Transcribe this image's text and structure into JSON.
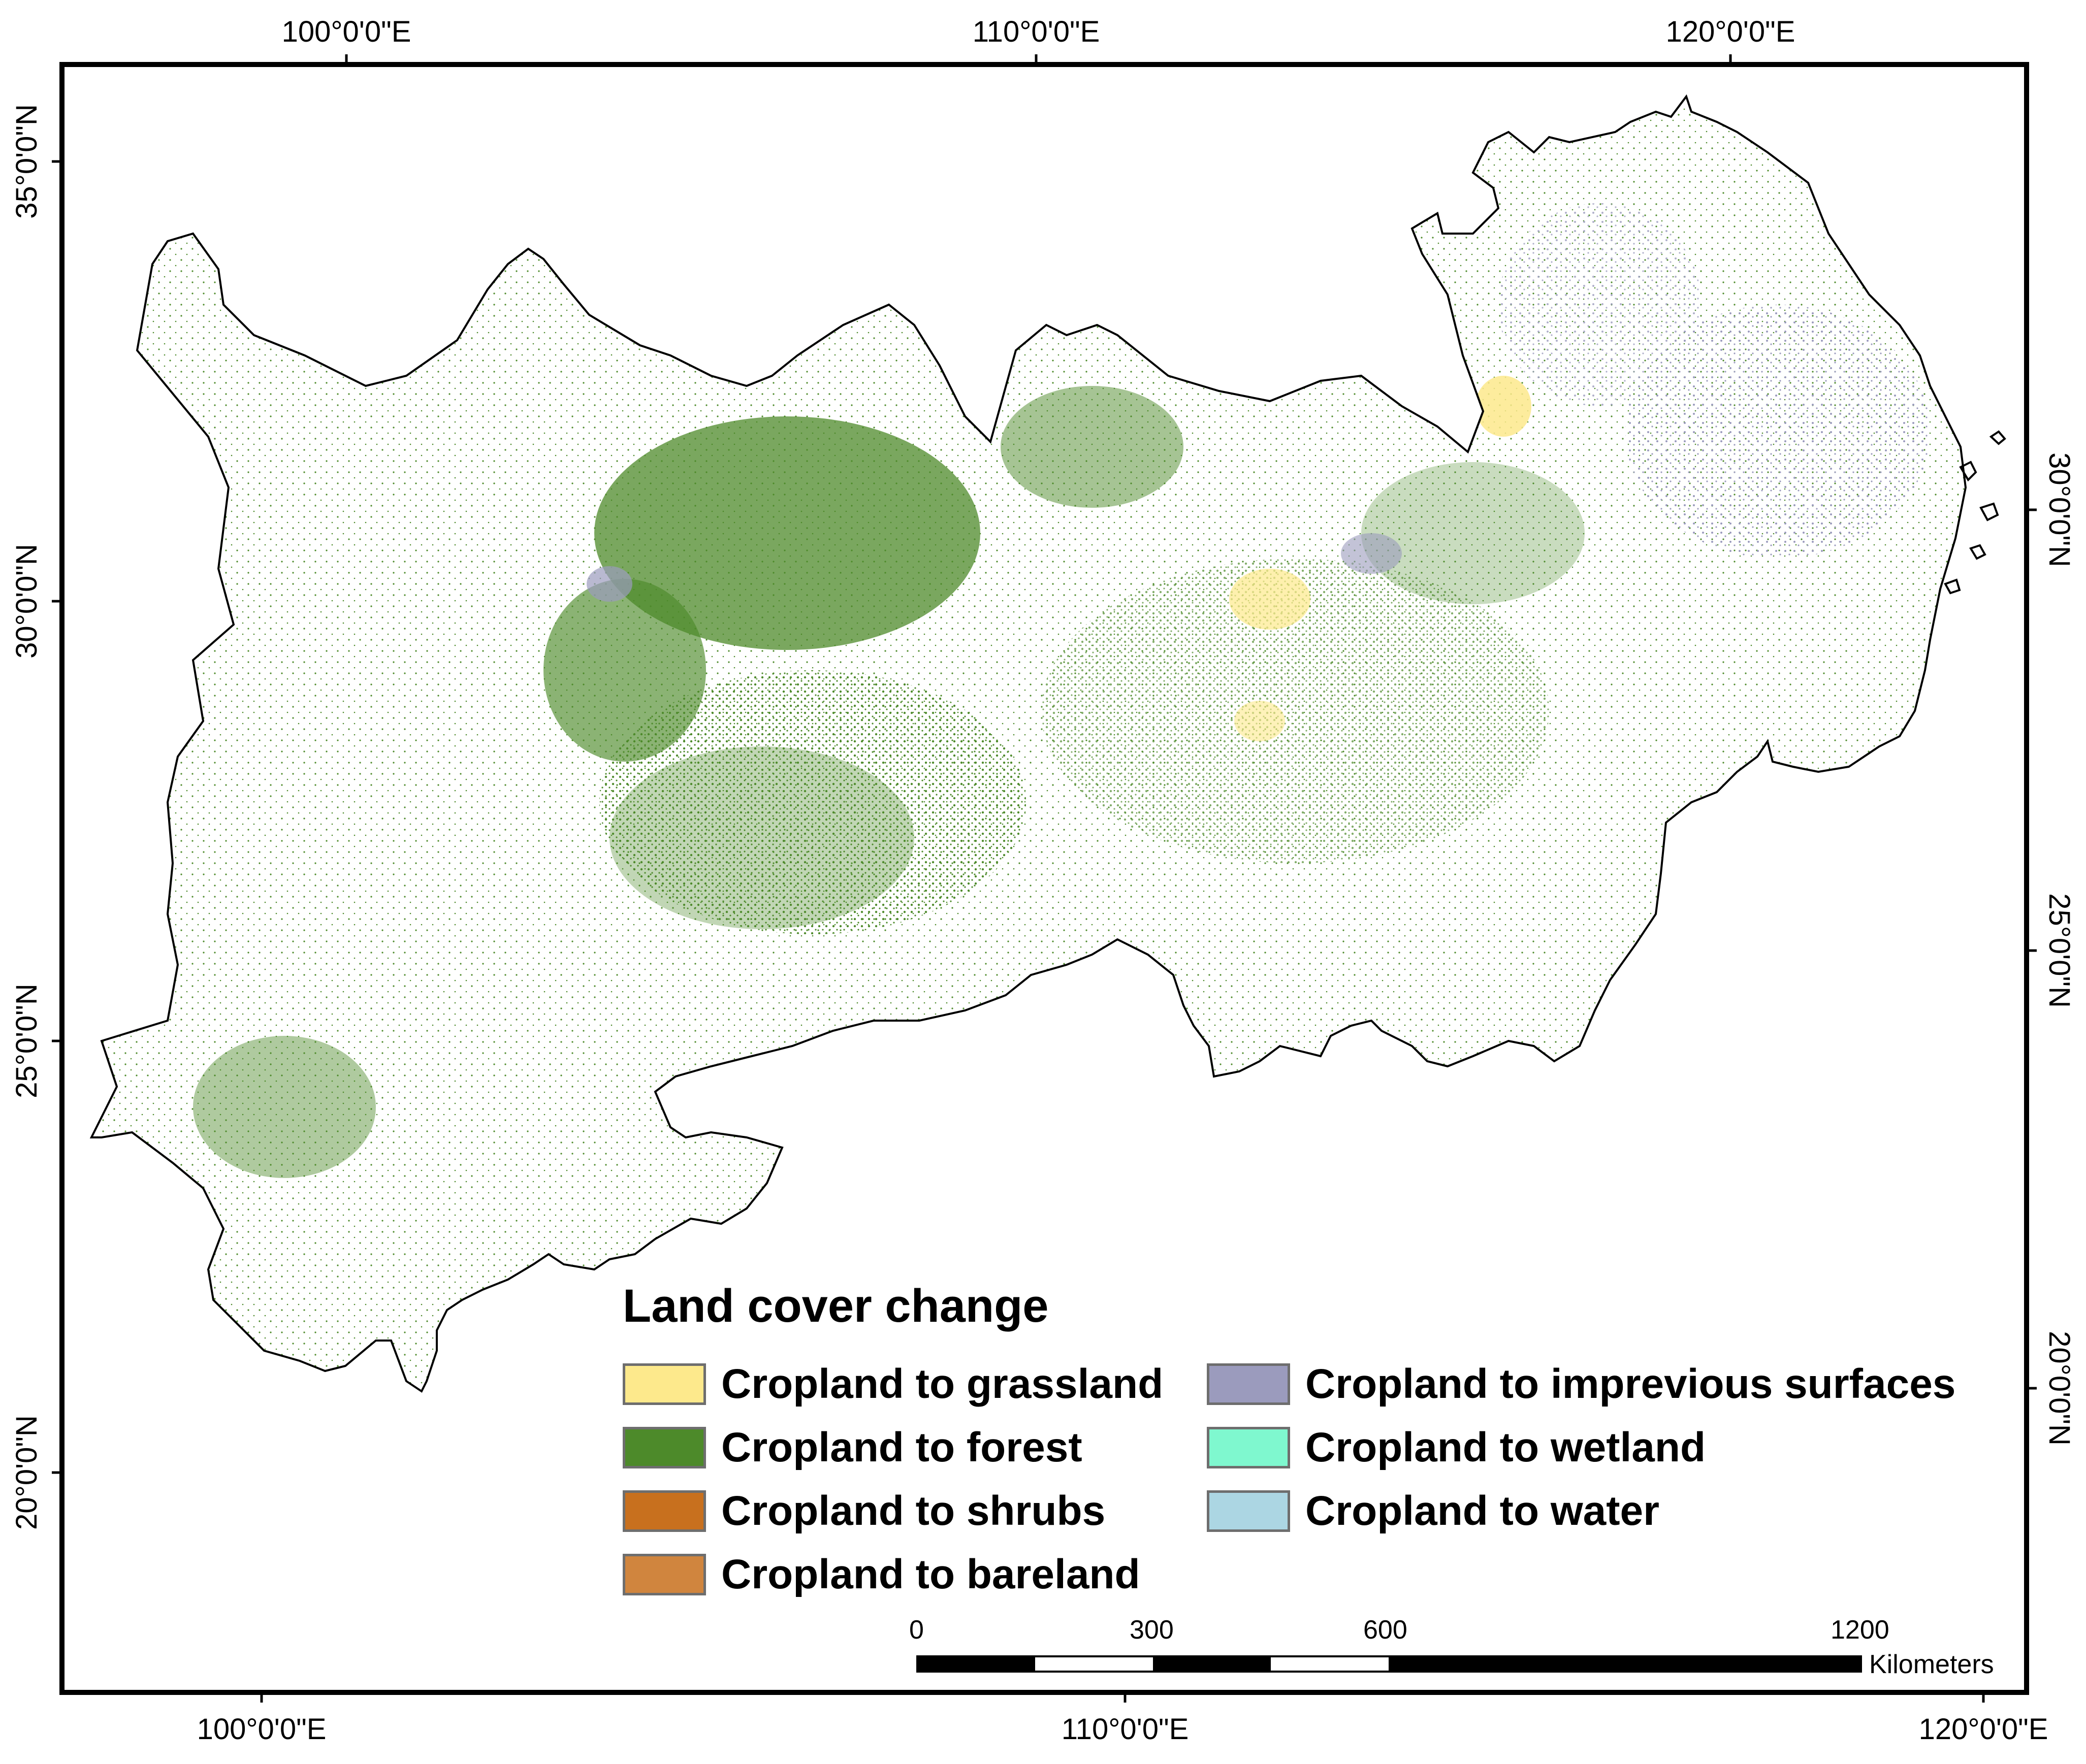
{
  "map": {
    "top_axis_labels": [
      "100°0'0\"E",
      "110°0'0\"E",
      "120°0'0\"E"
    ],
    "bottom_axis_labels": [
      "100°0'0\"E",
      "110°0'0\"E",
      "120°0'0\"E"
    ],
    "left_axis_labels": [
      "35°0'0\"N",
      "30°0'0\"N",
      "25°0'0\"N",
      "20°0'0\"N"
    ],
    "right_axis_labels": [
      "30°0'0\"N",
      "25°0'0\"N",
      "20°0'0\"N"
    ]
  },
  "legend": {
    "title": "Land cover change",
    "items": [
      {
        "label": "Cropland to grassland",
        "color": "#fde98c"
      },
      {
        "label": "Cropland to forest",
        "color": "#4d8a2a"
      },
      {
        "label": "Cropland to shrubs",
        "color": "#c8701e"
      },
      {
        "label": "Cropland to bareland",
        "color": "#d0853e"
      },
      {
        "label": "Cropland to imprevious surfaces",
        "color": "#9b9bbd"
      },
      {
        "label": "Cropland to wetland",
        "color": "#7ff8cf"
      },
      {
        "label": "Cropland to water",
        "color": "#acd6e3"
      }
    ]
  },
  "scale_bar": {
    "ticks": [
      "0",
      "300",
      "600",
      "1200"
    ],
    "unit": "Kilometers"
  },
  "colors": {
    "frame": "#000000",
    "region_outline": "#000000",
    "forest": "#4d8a2a",
    "grassland": "#fde98c",
    "impervious": "#9b9bbd"
  }
}
